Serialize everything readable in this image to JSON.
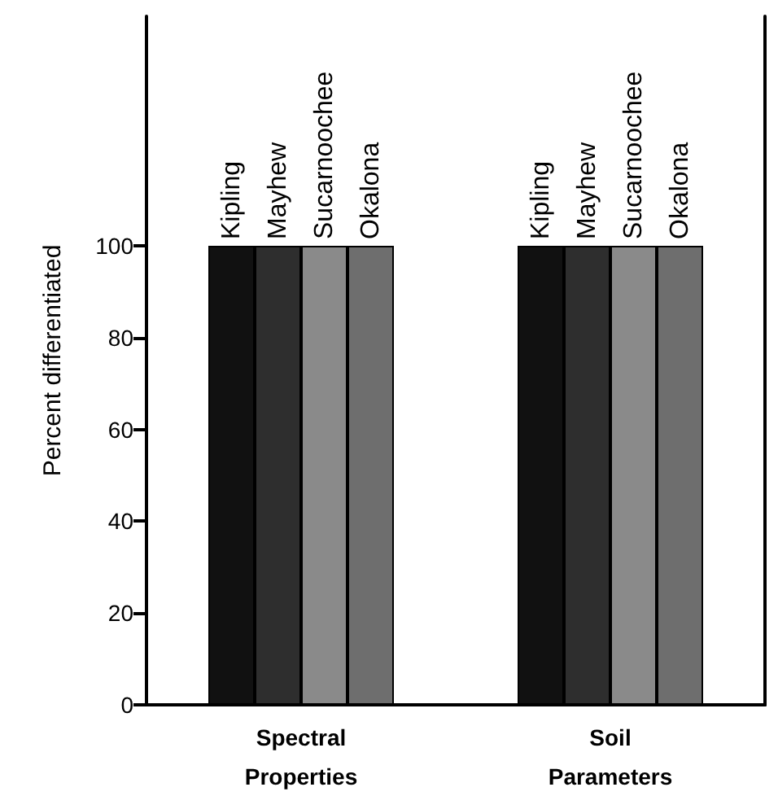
{
  "chart_data": {
    "type": "bar",
    "categories": [
      "Spectral\nProperties",
      "Soil\nParameters"
    ],
    "ylabel": "Percent differentiated",
    "ylim": [
      0,
      150
    ],
    "yticks": [
      0,
      20,
      40,
      60,
      80,
      100
    ],
    "grid": false,
    "legend": false,
    "series": [
      {
        "name": "Kipling",
        "color": "#111111",
        "values": [
          100,
          100
        ]
      },
      {
        "name": "Mayhew",
        "color": "#2e2e2e",
        "values": [
          100,
          100
        ]
      },
      {
        "name": "Sucarnoochee",
        "color": "#8a8a8a",
        "values": [
          100,
          100
        ]
      },
      {
        "name": "Okalona",
        "color": "#6e6e6e",
        "values": [
          100,
          100
        ]
      }
    ]
  }
}
